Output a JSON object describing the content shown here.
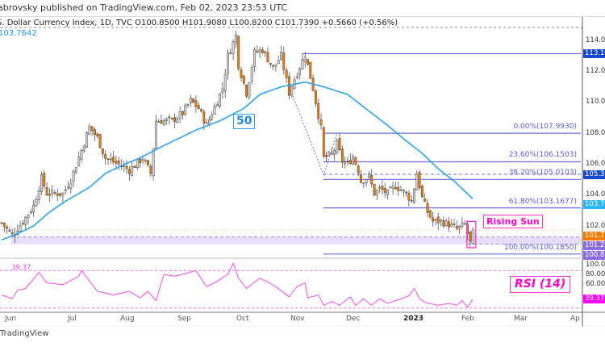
{
  "header": {
    "published": "abrovsky published on TradingView.com, Feb 02, 2023 23:53 UTC"
  },
  "legend": {
    "title": "S. Dollar Currency Index, 1D, TVC  O100.8500  H101.9080  L100.8200  C101.7390  +0.5660 (+0.56%)",
    "ma_value": "103.7642"
  },
  "annotations": {
    "rising_sun": "Rising Sun",
    "rsi": "RSI (14)",
    "ma50": "50",
    "rsi_ref": "39.37"
  },
  "fib_levels": [
    {
      "label": "0.00%(107.9930)",
      "price": 107.993
    },
    {
      "label": "23.60%(106.1503)",
      "price": 106.1503
    },
    {
      "label": "38.20%(105.0103)",
      "price": 105.0103
    },
    {
      "label": "61.80%(103.1677)",
      "price": 103.1677
    },
    {
      "label": "100.00%(100.1850)",
      "price": 100.185
    }
  ],
  "price_axis": [
    "114.00",
    "112.00",
    "110.00",
    "108.00",
    "106.00",
    "104.00",
    "102.00",
    "100.00"
  ],
  "rsi_axis": [
    "80.00",
    "60.00"
  ],
  "badges": [
    {
      "text": "113.14",
      "price": 113.14,
      "color": "#1848cc"
    },
    {
      "text": "105.34",
      "price": 105.34,
      "color": "#1848cc"
    },
    {
      "text": "103.76",
      "price": 103.76,
      "color": "#29b6f6"
    },
    {
      "text": "101.73",
      "price": 101.739,
      "color": "#f57c00"
    },
    {
      "text": "101.29",
      "price": 101.29,
      "color": "#8a6be0"
    },
    {
      "text": "100.82",
      "price": 100.82,
      "color": "#8a6be0"
    },
    {
      "text": "39.37",
      "rsi": 39.37,
      "color": "#ff00ff"
    }
  ],
  "time_axis": [
    "Jun",
    "Jul",
    "Aug",
    "Sep",
    "Oct",
    "Nov",
    "Dec",
    "2023",
    "Feb",
    "Mar",
    "Ap"
  ],
  "brand": "TradingView",
  "colors": {
    "up": "#d6d6d6",
    "down": "#f57c00",
    "ma": "#29a3f0",
    "rsi": "#ff44ee",
    "fib": "#6b6bdc"
  },
  "chart_data": {
    "type": "candlestick",
    "title": "U.S. Dollar Currency Index, 1D, TVC",
    "ylim": [
      99.5,
      115
    ],
    "close_waypoints": [
      [
        0,
        102.2
      ],
      [
        4,
        101.4
      ],
      [
        8,
        102.3
      ],
      [
        12,
        103.3
      ],
      [
        15,
        105.1
      ],
      [
        17,
        104.1
      ],
      [
        23,
        104.1
      ],
      [
        26,
        105.0
      ],
      [
        30,
        106.9
      ],
      [
        33,
        108.4
      ],
      [
        36,
        107.7
      ],
      [
        39,
        106.4
      ],
      [
        45,
        105.9
      ],
      [
        48,
        105.6
      ],
      [
        53,
        106.4
      ],
      [
        56,
        105.4
      ],
      [
        58,
        108.8
      ],
      [
        64,
        108.8
      ],
      [
        68,
        109.3
      ],
      [
        71,
        110.1
      ],
      [
        74,
        109.6
      ],
      [
        77,
        108.5
      ],
      [
        80,
        109.7
      ],
      [
        83,
        110.9
      ],
      [
        85,
        113.0
      ],
      [
        88,
        114.3
      ],
      [
        89,
        112.4
      ],
      [
        92,
        110.6
      ],
      [
        95,
        113.2
      ],
      [
        98,
        113.4
      ],
      [
        102,
        112.2
      ],
      [
        105,
        113.0
      ],
      [
        108,
        110.6
      ],
      [
        109,
        111.1
      ],
      [
        114,
        113.1
      ],
      [
        117,
        110.9
      ],
      [
        120,
        108.3
      ],
      [
        121,
        106.4
      ],
      [
        124,
        106.6
      ],
      [
        126,
        107.3
      ],
      [
        128,
        106.2
      ],
      [
        130,
        106.0
      ],
      [
        132,
        106.5
      ],
      [
        134,
        105.6
      ],
      [
        135,
        104.9
      ],
      [
        138,
        105.2
      ],
      [
        140,
        104.1
      ],
      [
        142,
        104.4
      ],
      [
        145,
        104.1
      ],
      [
        148,
        104.6
      ],
      [
        152,
        104.1
      ],
      [
        154,
        103.6
      ],
      [
        156,
        105.4
      ],
      [
        158,
        103.8
      ],
      [
        160,
        102.9
      ],
      [
        162,
        102.3
      ],
      [
        165,
        102.3
      ],
      [
        168,
        102.1
      ],
      [
        171,
        101.8
      ],
      [
        174,
        102.1
      ],
      [
        176,
        100.9
      ],
      [
        177,
        101.739
      ]
    ],
    "ma50_waypoints": [
      [
        0,
        101.1
      ],
      [
        6,
        101.5
      ],
      [
        12,
        102.0
      ],
      [
        18,
        102.9
      ],
      [
        24,
        103.6
      ],
      [
        33,
        104.5
      ],
      [
        39,
        105.4
      ],
      [
        45,
        105.9
      ],
      [
        52,
        106.4
      ],
      [
        61,
        107.2
      ],
      [
        73,
        108.2
      ],
      [
        82,
        108.8
      ],
      [
        91,
        109.6
      ],
      [
        97,
        110.5
      ],
      [
        105,
        111.0
      ],
      [
        114,
        111.3
      ],
      [
        121,
        111.0
      ],
      [
        130,
        110.5
      ],
      [
        139,
        109.3
      ],
      [
        145,
        108.5
      ],
      [
        152,
        107.5
      ],
      [
        158,
        106.7
      ],
      [
        164,
        105.7
      ],
      [
        170,
        104.9
      ],
      [
        177,
        103.76
      ]
    ],
    "rsi_waypoints": [
      [
        0,
        44
      ],
      [
        4,
        40
      ],
      [
        6,
        49
      ],
      [
        9,
        51
      ],
      [
        14,
        68
      ],
      [
        17,
        57
      ],
      [
        23,
        55
      ],
      [
        29,
        64
      ],
      [
        30,
        70
      ],
      [
        36,
        48
      ],
      [
        42,
        44
      ],
      [
        48,
        48
      ],
      [
        52,
        41
      ],
      [
        55,
        48
      ],
      [
        58,
        38
      ],
      [
        61,
        66
      ],
      [
        65,
        64
      ],
      [
        73,
        70
      ],
      [
        77,
        53
      ],
      [
        80,
        57
      ],
      [
        85,
        66
      ],
      [
        87,
        78
      ],
      [
        89,
        62
      ],
      [
        92,
        51
      ],
      [
        97,
        62
      ],
      [
        100,
        58
      ],
      [
        103,
        53
      ],
      [
        108,
        42
      ],
      [
        111,
        53
      ],
      [
        114,
        57
      ],
      [
        115,
        41
      ],
      [
        119,
        44
      ],
      [
        121,
        33
      ],
      [
        124,
        37
      ],
      [
        127,
        33
      ],
      [
        131,
        42
      ],
      [
        133,
        33
      ],
      [
        136,
        40
      ],
      [
        139,
        33
      ],
      [
        142,
        40
      ],
      [
        145,
        35
      ],
      [
        148,
        38
      ],
      [
        153,
        43
      ],
      [
        155,
        51
      ],
      [
        157,
        40
      ],
      [
        159,
        36
      ],
      [
        164,
        33
      ],
      [
        168,
        35
      ],
      [
        171,
        33
      ],
      [
        173,
        38
      ],
      [
        175,
        31
      ],
      [
        177,
        39.37
      ]
    ],
    "rsi_levels": [
      70,
      30
    ],
    "highlight_band": [
      100.82,
      101.29
    ],
    "swing_high_line": 113.14
  }
}
